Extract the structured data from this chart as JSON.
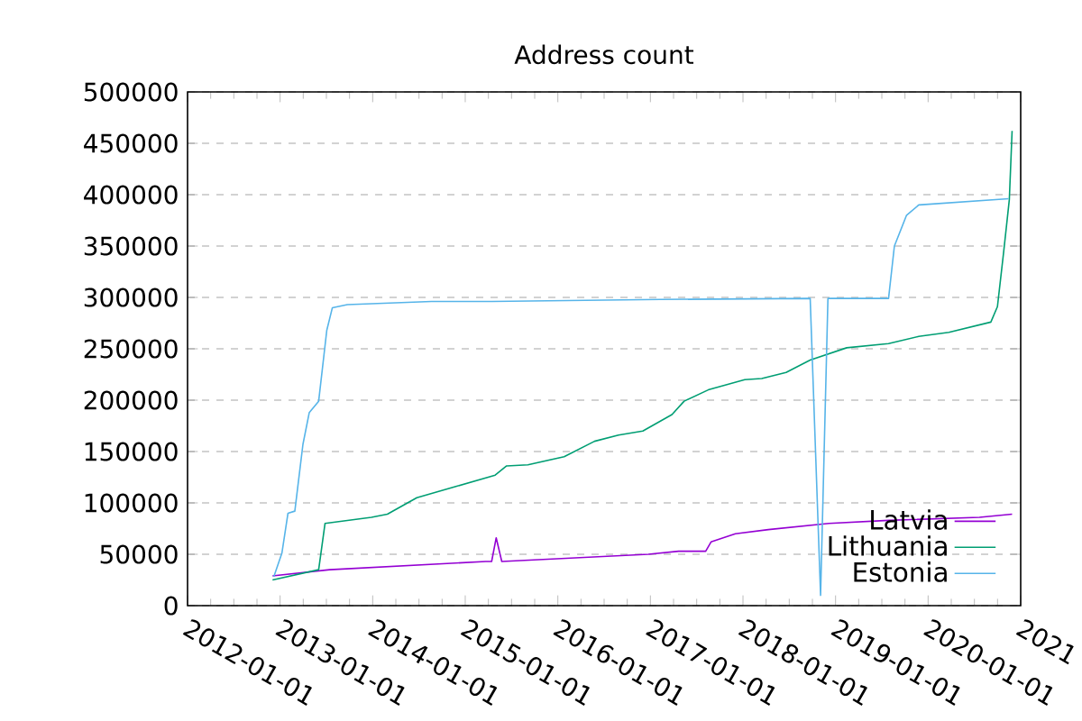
{
  "chart_data": {
    "type": "line",
    "title": "Address count",
    "series": [
      {
        "name": "Latvia",
        "color": "#9400d3",
        "x": [
          "2012-12-02",
          "2013-07-15",
          "2015-03-23",
          "2015-04-15",
          "2015-05-03",
          "2015-05-25",
          "2016-12-24",
          "2017-04-22",
          "2017-08-07",
          "2017-08-28",
          "2017-12-02",
          "2018-04-11",
          "2018-12-06",
          "2019-07-29",
          "2020-07-22",
          "2020-11-28"
        ],
        "values": [
          29000,
          35000,
          43000,
          43000,
          66000,
          43000,
          50000,
          53000,
          53000,
          62000,
          70000,
          74000,
          80000,
          83000,
          86000,
          89000
        ]
      },
      {
        "name": "Lithuania",
        "color": "#009e73",
        "x": [
          "2012-12-02",
          "2013-06-02",
          "2013-06-27",
          "2013-12-27",
          "2014-02-28",
          "2014-06-24",
          "2014-11-25",
          "2015-04-29",
          "2015-06-13",
          "2015-09-05",
          "2016-01-26",
          "2016-05-25",
          "2016-08-28",
          "2016-12-02",
          "2017-03-27",
          "2017-05-14",
          "2017-08-17",
          "2018-01-08",
          "2018-03-16",
          "2018-06-20",
          "2018-09-23",
          "2019-02-14",
          "2019-07-29",
          "2019-11-25",
          "2020-03-23",
          "2020-09-05",
          "2020-10-01",
          "2020-10-26",
          "2020-11-17",
          "2020-11-28"
        ],
        "values": [
          25000,
          35000,
          80000,
          86000,
          89000,
          105000,
          116000,
          127000,
          136000,
          137000,
          145000,
          160000,
          166000,
          170000,
          186000,
          199000,
          210000,
          220000,
          221000,
          227000,
          239000,
          251000,
          255000,
          262000,
          266000,
          276000,
          291000,
          345000,
          395000,
          462000
        ]
      },
      {
        "name": "Estonia",
        "color": "#56b4e9",
        "x": [
          "2012-12-07",
          "2013-01-08",
          "2013-02-01",
          "2013-02-28",
          "2013-04-01",
          "2013-04-26",
          "2013-06-02",
          "2013-07-04",
          "2013-07-26",
          "2013-09-23",
          "2014-08-21",
          "2015-04-15",
          "2017-02-10",
          "2018-09-23",
          "2018-11-03",
          "2018-12-02",
          "2019-07-29",
          "2019-08-21",
          "2019-10-08",
          "2019-11-25",
          "2020-11-14"
        ],
        "values": [
          28000,
          51000,
          90000,
          92000,
          157000,
          188000,
          199000,
          268000,
          290000,
          293000,
          296000,
          296000,
          298000,
          299000,
          10000,
          299000,
          299000,
          350000,
          380000,
          390000,
          396000
        ]
      }
    ],
    "xlim": [
      "2012-01-01",
      "2021-01-01"
    ],
    "xticks": [
      "2012-01-01",
      "2013-01-01",
      "2014-01-01",
      "2015-01-01",
      "2016-01-01",
      "2017-01-01",
      "2018-01-01",
      "2019-01-01",
      "2020-01-01",
      {
        "value": "2021-01-01",
        "label": "2021"
      }
    ],
    "ylim": [
      0,
      500000
    ],
    "yticks": [
      0,
      50000,
      100000,
      150000,
      200000,
      250000,
      300000,
      350000,
      400000,
      450000,
      500000
    ],
    "grid": "y",
    "legend": "bottom right",
    "marker": "none",
    "line_style": "solid"
  }
}
